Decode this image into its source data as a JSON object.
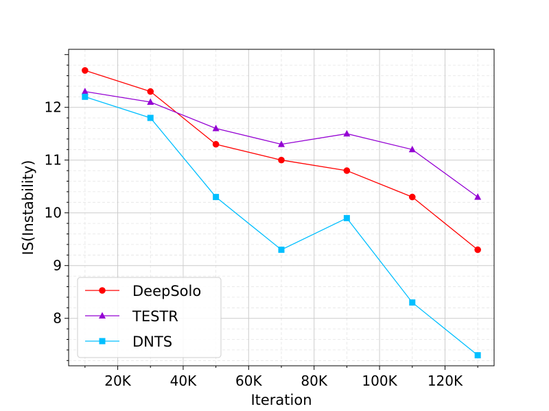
{
  "chart_data": {
    "type": "line",
    "title": "",
    "xlabel": "Iteration",
    "ylabel": "IS(Instability)",
    "x": [
      10000,
      30000,
      50000,
      70000,
      90000,
      110000,
      130000
    ],
    "xlim": [
      5000,
      135000
    ],
    "ylim": [
      7.1,
      13.1
    ],
    "x_ticks": [
      {
        "value": 20000,
        "label": "20K"
      },
      {
        "value": 40000,
        "label": "40K"
      },
      {
        "value": 60000,
        "label": "60K"
      },
      {
        "value": 80000,
        "label": "80K"
      },
      {
        "value": 100000,
        "label": "100K"
      },
      {
        "value": 120000,
        "label": "120K"
      }
    ],
    "y_ticks": [
      {
        "value": 8,
        "label": "8"
      },
      {
        "value": 9,
        "label": "9"
      },
      {
        "value": 10,
        "label": "10"
      },
      {
        "value": 11,
        "label": "11"
      },
      {
        "value": 12,
        "label": "12"
      }
    ],
    "grid": true,
    "legend_position": "bottom-left",
    "series": [
      {
        "name": "DeepSolo",
        "color": "#ff0000",
        "marker": "circle",
        "values": [
          12.7,
          12.3,
          11.3,
          11.0,
          10.8,
          10.3,
          9.3
        ]
      },
      {
        "name": "TESTR",
        "color": "#9400d3",
        "marker": "triangle",
        "values": [
          12.3,
          12.1,
          11.6,
          11.3,
          11.5,
          11.2,
          10.3
        ]
      },
      {
        "name": "DNTS",
        "color": "#00bfff",
        "marker": "square",
        "values": [
          12.2,
          11.8,
          10.3,
          9.3,
          9.9,
          8.3,
          7.3
        ]
      }
    ]
  }
}
